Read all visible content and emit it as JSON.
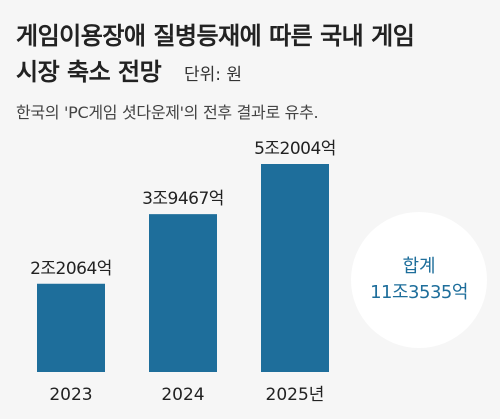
{
  "header": {
    "title_line1": "게임이용장애 질병등재에 따른 국내 게임",
    "title_line2": "시장 축소 전망",
    "unit": "단위: 원",
    "subtitle": "한국의 'PC게임 셧다운제'의 전후 결과로 유추."
  },
  "total": {
    "label": "합계",
    "value": "11조3535억"
  },
  "colors": {
    "bar": "#1e6e9b",
    "background": "#f6f6f6",
    "total_text": "#1e6e9b"
  },
  "chart_data": {
    "type": "bar",
    "title": "게임이용장애 질병등재에 따른 국내 게임 시장 축소 전망",
    "unit": "원",
    "categories": [
      "2023",
      "2024",
      "2025년"
    ],
    "values": [
      22064,
      39467,
      52004
    ],
    "value_labels": [
      "2조2064억",
      "3조9467억",
      "5조2004억"
    ],
    "value_unit": "억원",
    "ylim": [
      0,
      52004
    ],
    "grid": false,
    "legend": "none"
  }
}
